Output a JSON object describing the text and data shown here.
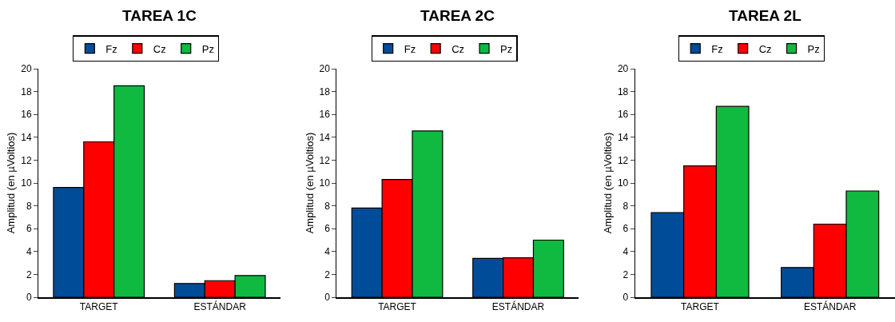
{
  "chart_data": [
    {
      "type": "bar",
      "title": "TAREA 1C",
      "ylabel": "Amplitud (en µVoltios)",
      "categories": [
        "TARGET",
        "ESTÁNDAR"
      ],
      "series": [
        {
          "name": "Fz",
          "color": "#004c99",
          "values": [
            9.6,
            1.2
          ]
        },
        {
          "name": "Cz",
          "color": "#ff0000",
          "values": [
            13.6,
            1.45
          ]
        },
        {
          "name": "Pz",
          "color": "#10b940",
          "values": [
            18.5,
            1.9
          ]
        }
      ],
      "ylim": [
        0,
        20
      ],
      "yticks": [
        0,
        2,
        4,
        6,
        8,
        10,
        12,
        14,
        16,
        18,
        20
      ],
      "legend": "top"
    },
    {
      "type": "bar",
      "title": "TAREA 2C",
      "ylabel": "Amplitud (en µVoltios)",
      "categories": [
        "TARGET",
        "ESTÁNDAR"
      ],
      "series": [
        {
          "name": "Fz",
          "color": "#004c99",
          "values": [
            7.8,
            3.4
          ]
        },
        {
          "name": "Cz",
          "color": "#ff0000",
          "values": [
            10.3,
            3.45
          ]
        },
        {
          "name": "Pz",
          "color": "#10b940",
          "values": [
            14.55,
            5.0
          ]
        }
      ],
      "ylim": [
        0,
        20
      ],
      "yticks": [
        0,
        2,
        4,
        6,
        8,
        10,
        12,
        14,
        16,
        18,
        20
      ],
      "legend": "top"
    },
    {
      "type": "bar",
      "title": "TAREA 2L",
      "ylabel": "Amplitud (en µVoltios)",
      "categories": [
        "TARGET",
        "ESTÁNDAR"
      ],
      "series": [
        {
          "name": "Fz",
          "color": "#004c99",
          "values": [
            7.4,
            2.6
          ]
        },
        {
          "name": "Cz",
          "color": "#ff0000",
          "values": [
            11.5,
            6.4
          ]
        },
        {
          "name": "Pz",
          "color": "#10b940",
          "values": [
            16.7,
            9.3
          ]
        }
      ],
      "ylim": [
        0,
        20
      ],
      "yticks": [
        0,
        2,
        4,
        6,
        8,
        10,
        12,
        14,
        16,
        18,
        20
      ],
      "legend": "top"
    }
  ]
}
